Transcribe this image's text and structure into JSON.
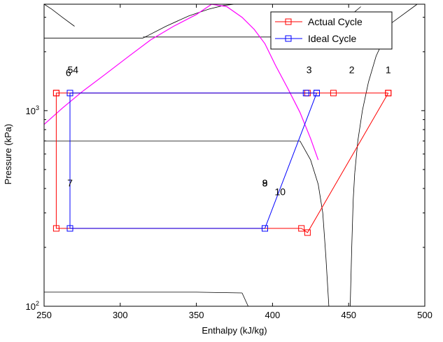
{
  "chart_data": {
    "type": "line",
    "title": "",
    "xlabel": "Enthalpy (kJ/kg)",
    "ylabel": "Pressure (kPa)",
    "xlim": [
      250,
      500
    ],
    "ylim": [
      100,
      3500
    ],
    "yscale": "log",
    "grid": false,
    "x_ticks": [
      "250",
      "300",
      "350",
      "400",
      "450",
      "500"
    ],
    "y_ticks": [
      {
        "base": "10",
        "exp": "2",
        "value": 100
      },
      {
        "base": "10",
        "exp": "3",
        "value": 1000
      }
    ],
    "legend": {
      "placement": "top-right",
      "entries": [
        "Actual Cycle",
        "Ideal Cycle"
      ]
    },
    "colors": {
      "actual": "#ff0000",
      "ideal": "#0000ff",
      "saturation": "#ff00ff",
      "isotherm": "#000000"
    },
    "series": [
      {
        "name": "Actual Cycle",
        "x": [
          476,
          440,
          423,
          258,
          258,
          258,
          419,
          423,
          476
        ],
        "y": [
          1230,
          1230,
          1230,
          1230,
          1230,
          250,
          250,
          238,
          1230
        ]
      },
      {
        "name": "Ideal Cycle",
        "x": [
          429,
          422,
          267,
          267,
          395,
          429
        ],
        "y": [
          1230,
          1230,
          1230,
          250,
          250,
          1230
        ]
      }
    ],
    "saturation_curve": {
      "x": [
        250,
        262,
        275,
        290,
        305,
        320,
        335,
        350,
        360,
        370,
        380,
        388,
        395,
        402,
        410,
        418,
        425,
        430
      ],
      "y": [
        850,
        1030,
        1250,
        1530,
        1880,
        2300,
        2700,
        3100,
        3500,
        3400,
        3000,
        2600,
        2200,
        1700,
        1300,
        980,
        720,
        560
      ]
    },
    "isotherms": [
      {
        "x": [
          250,
          255,
          262,
          270
        ],
        "y": [
          3500,
          3300,
          3000,
          2700
        ]
      },
      {
        "x": [
          250,
          305,
          315
        ],
        "y": [
          2350,
          2350,
          2350
        ]
      },
      {
        "x": [
          315,
          330,
          345,
          358,
          368,
          375
        ],
        "y": [
          2350,
          2700,
          3050,
          3300,
          3450,
          3500
        ]
      },
      {
        "x": [
          315,
          420,
          430
        ],
        "y": [
          2380,
          2380,
          2380
        ]
      },
      {
        "x": [
          430,
          445,
          458
        ],
        "y": [
          2380,
          2800,
          3400
        ]
      },
      {
        "x": [
          250,
          410,
          418
        ],
        "y": [
          700,
          700,
          700
        ]
      },
      {
        "x": [
          418,
          425,
          430,
          433,
          435,
          437
        ],
        "y": [
          700,
          560,
          420,
          300,
          180,
          100
        ]
      },
      {
        "x": [
          495,
          478,
          468,
          463,
          459,
          456,
          454
        ],
        "y": [
          3500,
          2800,
          1900,
          1400,
          1000,
          700,
          480
        ]
      },
      {
        "x": [
          454,
          453,
          452,
          451
        ],
        "y": [
          480,
          350,
          200,
          100
        ]
      },
      {
        "x": [
          250,
          350,
          380
        ],
        "y": [
          118,
          118,
          117
        ]
      },
      {
        "x": [
          380,
          384
        ],
        "y": [
          117,
          100
        ]
      }
    ],
    "point_labels": [
      {
        "text": "1",
        "x": 476,
        "y": 1550
      },
      {
        "text": "2",
        "x": 452,
        "y": 1550
      },
      {
        "text": "3",
        "x": 424,
        "y": 1550
      },
      {
        "text": "54",
        "x": 269,
        "y": 1550
      },
      {
        "text": "6",
        "x": 266,
        "y": 1500
      },
      {
        "text": "7",
        "x": 267,
        "y": 410
      },
      {
        "text": "8",
        "x": 395,
        "y": 410
      },
      {
        "text": "9",
        "x": 395,
        "y": 410
      },
      {
        "text": "10",
        "x": 405,
        "y": 370
      }
    ]
  }
}
